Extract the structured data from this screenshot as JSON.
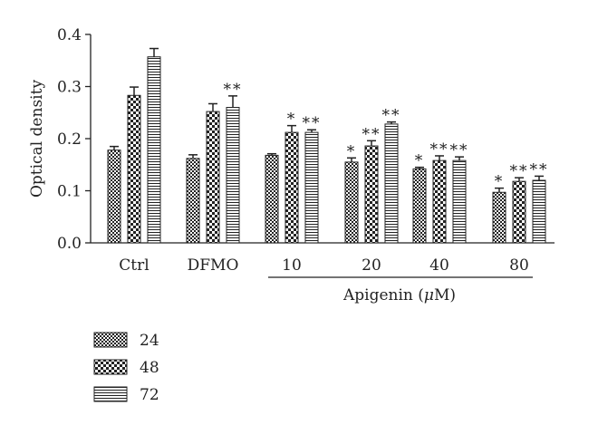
{
  "chart_data": {
    "type": "bar",
    "ylabel": "Optical density",
    "ylim": [
      0,
      0.4
    ],
    "yticks": [
      "0.0",
      "0.1",
      "0.2",
      "0.3",
      "0.4"
    ],
    "categories": [
      "Ctrl",
      "DFMO",
      "10",
      "20",
      "40",
      "80"
    ],
    "group_label": "Apigenin (μM)",
    "group_label_parts": {
      "text": "Apigenin (",
      "mu": "μ",
      "unit": "M)"
    },
    "group_span": [
      "10",
      "80"
    ],
    "series": [
      {
        "name": "24",
        "pattern": "fine-checker",
        "values": [
          0.178,
          0.162,
          0.168,
          0.155,
          0.142,
          0.097
        ],
        "errors": [
          0.007,
          0.007,
          0.003,
          0.008,
          0.003,
          0.008
        ],
        "significance": [
          "",
          "",
          "",
          "*",
          "*",
          "*"
        ]
      },
      {
        "name": "48",
        "pattern": "coarse-checker",
        "values": [
          0.283,
          0.252,
          0.212,
          0.186,
          0.158,
          0.118
        ],
        "errors": [
          0.016,
          0.015,
          0.013,
          0.01,
          0.009,
          0.007
        ],
        "significance": [
          "",
          "",
          "*",
          "**",
          "**",
          "**"
        ]
      },
      {
        "name": "72",
        "pattern": "horizontal-stripes",
        "values": [
          0.357,
          0.26,
          0.212,
          0.228,
          0.158,
          0.12
        ],
        "errors": [
          0.016,
          0.022,
          0.005,
          0.004,
          0.007,
          0.008
        ],
        "significance": [
          "",
          "**",
          "**",
          "**",
          "**",
          "**"
        ]
      }
    ],
    "legend_position": "bottom-left",
    "grid": false,
    "colors": {
      "ink": "#222222",
      "background": "#ffffff"
    }
  }
}
